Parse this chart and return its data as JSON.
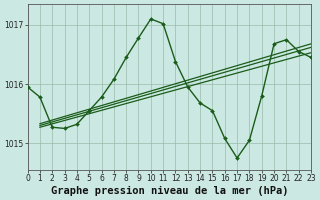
{
  "title": "Graphe pression niveau de la mer (hPa)",
  "bg_color": "#cce8e2",
  "line_color": "#1a5c1a",
  "xlim": [
    0,
    23
  ],
  "ylim": [
    1014.55,
    1017.35
  ],
  "yticks": [
    1015,
    1016,
    1017
  ],
  "xticks": [
    0,
    1,
    2,
    3,
    4,
    5,
    6,
    7,
    8,
    9,
    10,
    11,
    12,
    13,
    14,
    15,
    16,
    17,
    18,
    19,
    20,
    21,
    22,
    23
  ],
  "trend1": {
    "x": [
      1,
      23
    ],
    "y": [
      1015.27,
      1016.53
    ]
  },
  "trend2": {
    "x": [
      1,
      23
    ],
    "y": [
      1015.3,
      1016.62
    ]
  },
  "trend3": {
    "x": [
      1,
      23
    ],
    "y": [
      1015.33,
      1016.68
    ]
  },
  "main_line": {
    "x": [
      0,
      1,
      2,
      3,
      4,
      5,
      6,
      7,
      8,
      9,
      10,
      11,
      12,
      13,
      14,
      15,
      16,
      17,
      18,
      19,
      20,
      21,
      22,
      23
    ],
    "y": [
      1015.95,
      1015.78,
      1015.27,
      1015.25,
      1015.32,
      1015.55,
      1015.78,
      1016.08,
      1016.45,
      1016.78,
      1017.1,
      1017.02,
      1016.38,
      1015.95,
      1015.68,
      1015.55,
      1015.08,
      1014.75,
      1015.05,
      1015.8,
      1016.68,
      1016.75,
      1016.55,
      1016.45
    ]
  },
  "title_fontsize": 7.5,
  "tick_fontsize": 5.5
}
